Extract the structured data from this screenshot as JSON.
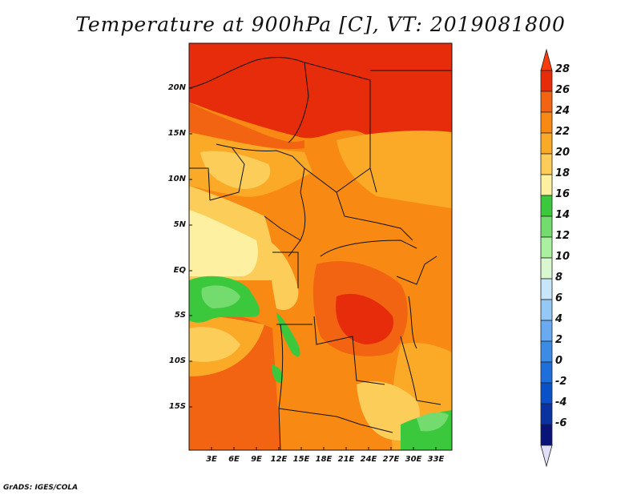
{
  "title": "Temperature at 900hPa [C], VT: 2019081800",
  "credit": "GrADS: IGES/COLA",
  "y_ticks": [
    "20N",
    "15N",
    "10N",
    "5N",
    "EQ",
    "5S",
    "10S",
    "15S"
  ],
  "x_ticks": [
    "3E",
    "6E",
    "9E",
    "12E",
    "15E",
    "18E",
    "21E",
    "24E",
    "27E",
    "30E",
    "33E"
  ],
  "colorbar": {
    "labels": [
      "28",
      "26",
      "24",
      "22",
      "20",
      "18",
      "16",
      "14",
      "12",
      "10",
      "8",
      "6",
      "4",
      "2",
      "0",
      "-2",
      "-4",
      "-6"
    ],
    "colors": [
      "#fa3c0a",
      "#e62c0a",
      "#f26411",
      "#f88a14",
      "#fbaa28",
      "#fdcd5a",
      "#fdf0a0",
      "#3cc83c",
      "#74dc6e",
      "#aaf0a0",
      "#daf8d0",
      "#c8e6fa",
      "#96c8f5",
      "#6aaaf0",
      "#3c8ce6",
      "#1e6edc",
      "#0a50c8",
      "#0a32a0",
      "#0a1478",
      "#e0e0f8"
    ]
  }
}
